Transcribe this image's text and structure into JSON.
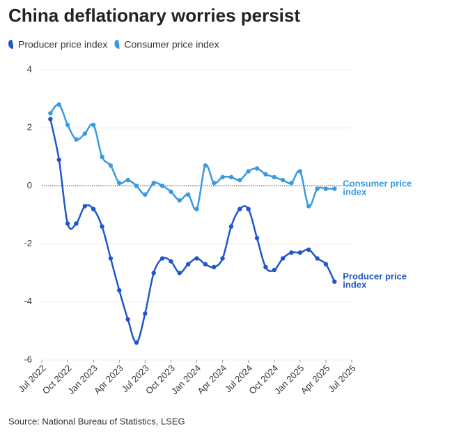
{
  "chart_data": {
    "type": "line",
    "title": "China deflationary worries persist",
    "source": "Source: National Bureau of Statistics, LSEG",
    "x": [
      "Aug 2022",
      "Sep 2022",
      "Oct 2022",
      "Nov 2022",
      "Dec 2022",
      "Jan 2023",
      "Feb 2023",
      "Mar 2023",
      "Apr 2023",
      "May 2023",
      "Jun 2023",
      "Jul 2023",
      "Aug 2023",
      "Sep 2023",
      "Oct 2023",
      "Nov 2023",
      "Dec 2023",
      "Jan 2024",
      "Feb 2024",
      "Mar 2024",
      "Apr 2024",
      "May 2024",
      "Jun 2024",
      "Jul 2024",
      "Aug 2024",
      "Sep 2024",
      "Oct 2024",
      "Nov 2024",
      "Dec 2024",
      "Jan 2025",
      "Feb 2025",
      "Mar 2025",
      "Apr 2025",
      "May 2025"
    ],
    "series": [
      {
        "name": "Producer price index",
        "color": "#1f57c8",
        "values": [
          2.3,
          0.9,
          -1.3,
          -1.3,
          -0.7,
          -0.8,
          -1.4,
          -2.5,
          -3.6,
          -4.6,
          -5.4,
          -4.4,
          -3.0,
          -2.5,
          -2.6,
          -3.0,
          -2.7,
          -2.5,
          -2.7,
          -2.8,
          -2.5,
          -1.4,
          -0.8,
          -0.8,
          -1.8,
          -2.8,
          -2.9,
          -2.5,
          -2.3,
          -2.3,
          -2.2,
          -2.5,
          -2.7,
          -3.3
        ]
      },
      {
        "name": "Consumer price index",
        "color": "#3a9ae0",
        "values": [
          2.5,
          2.8,
          2.1,
          1.6,
          1.8,
          2.1,
          1.0,
          0.7,
          0.1,
          0.2,
          0.0,
          -0.3,
          0.1,
          0.0,
          -0.2,
          -0.5,
          -0.3,
          -0.8,
          0.7,
          0.1,
          0.3,
          0.3,
          0.2,
          0.5,
          0.6,
          0.4,
          0.3,
          0.2,
          0.1,
          0.5,
          -0.7,
          -0.1,
          -0.1,
          -0.1
        ]
      }
    ],
    "xticks": [
      "Jul 2022",
      "Oct 2022",
      "Jan 2023",
      "Apr 2023",
      "Jul 2023",
      "Oct 2023",
      "Jan 2024",
      "Apr 2024",
      "Jul 2024",
      "Oct 2024",
      "Jan 2025",
      "Apr 2025",
      "Jul 2025"
    ],
    "ylim": [
      -6,
      4
    ],
    "yticks": [
      -6,
      -4,
      -2,
      0,
      2,
      4
    ],
    "grid": true
  }
}
